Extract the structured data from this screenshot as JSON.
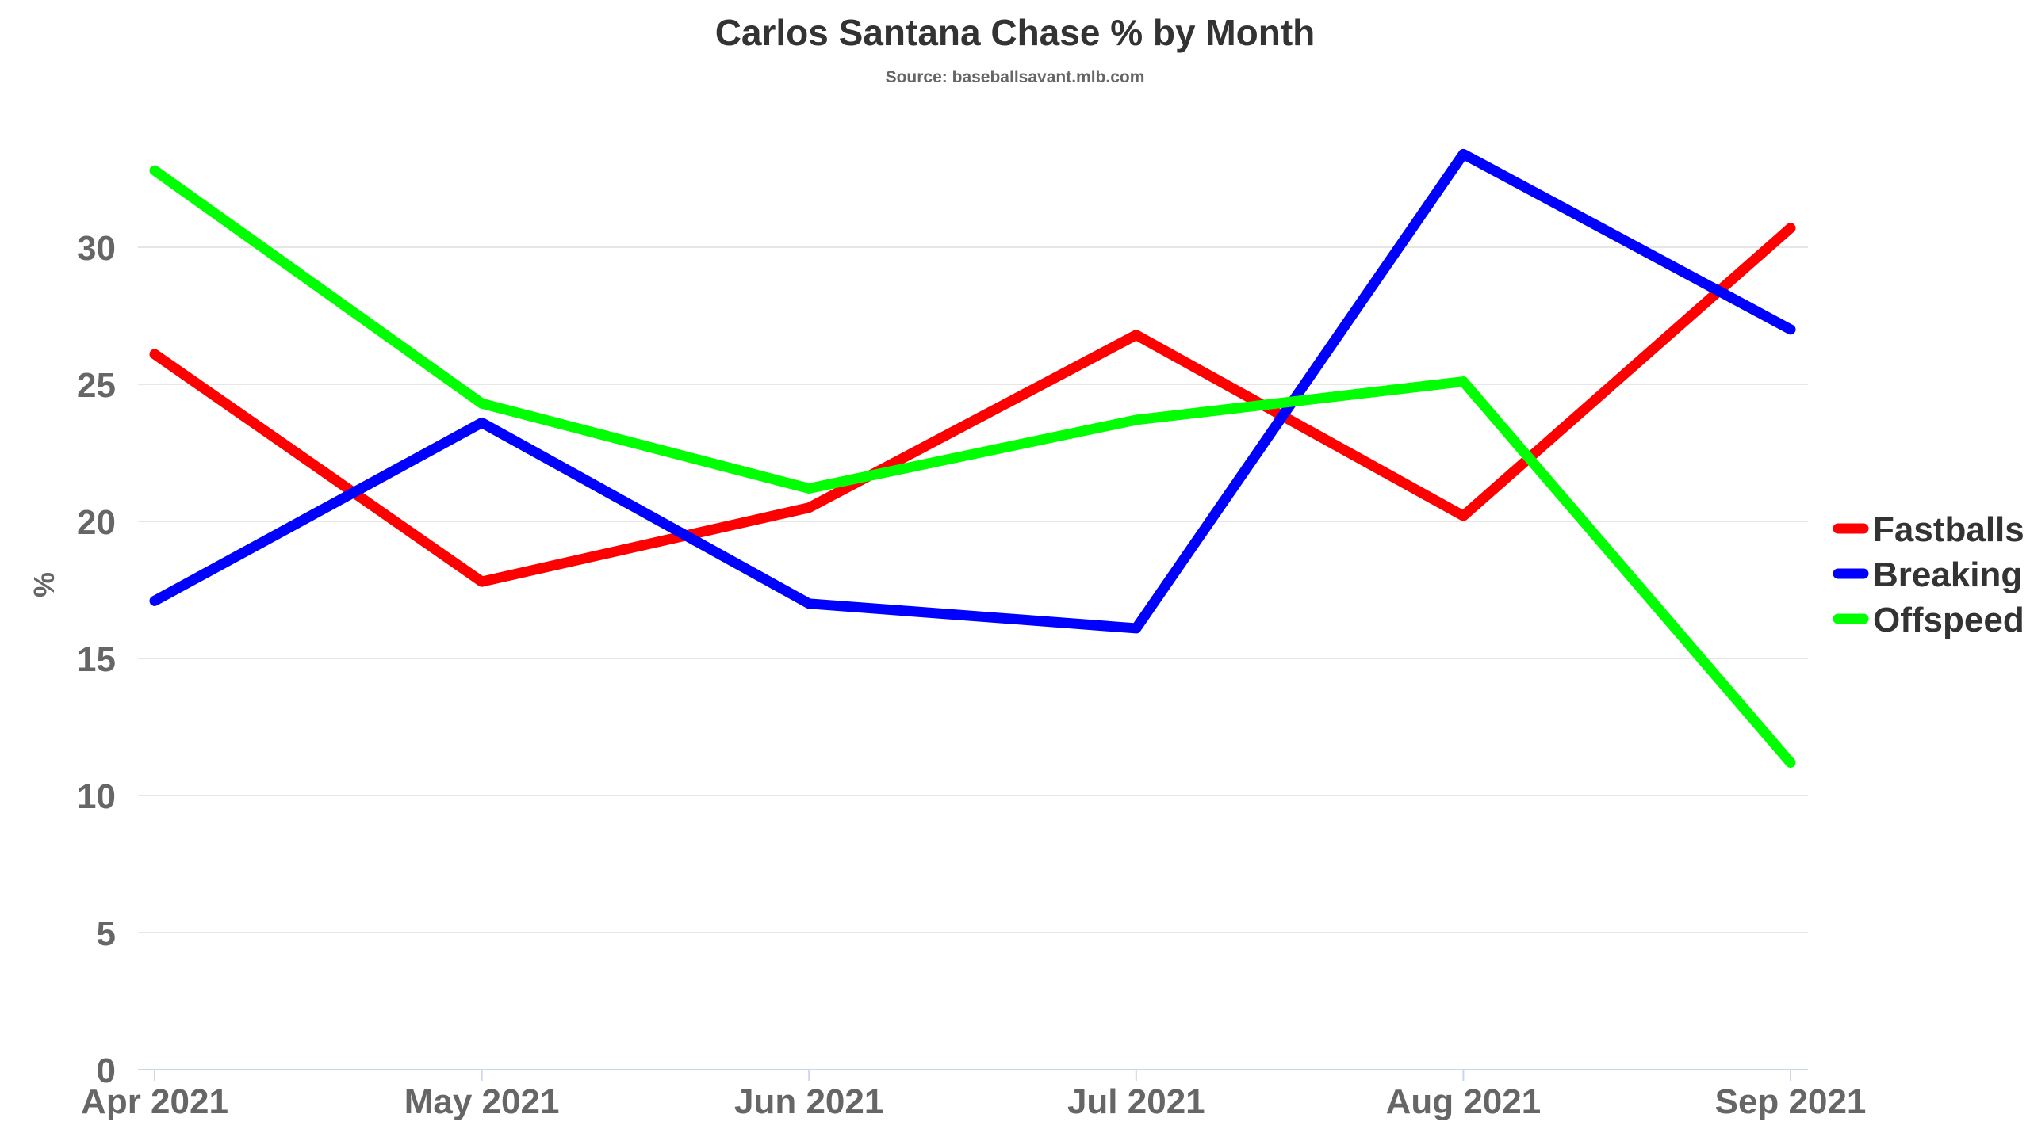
{
  "chart_data": {
    "type": "line",
    "title": "Carlos Santana Chase % by Month",
    "subtitle": "Source: baseballsavant.mlb.com",
    "xlabel": "",
    "ylabel": "%",
    "categories": [
      "Apr 2021",
      "May 2021",
      "Jun 2021",
      "Jul 2021",
      "Aug 2021",
      "Sep 2021"
    ],
    "ylim": [
      0,
      35
    ],
    "yticks": [
      "0",
      "5",
      "10",
      "15",
      "20",
      "25",
      "30"
    ],
    "grid": true,
    "legend_position": "right",
    "series": [
      {
        "name": "Fastballs",
        "color": "#ff0000",
        "values": [
          26.1,
          17.8,
          20.5,
          26.8,
          20.2,
          30.7
        ]
      },
      {
        "name": "Breaking",
        "color": "#0000ff",
        "values": [
          17.1,
          23.6,
          17.0,
          16.1,
          33.4,
          27.0
        ]
      },
      {
        "name": "Offspeed",
        "color": "#00ff00",
        "values": [
          32.8,
          24.3,
          21.2,
          23.7,
          25.1,
          11.2
        ]
      }
    ]
  }
}
